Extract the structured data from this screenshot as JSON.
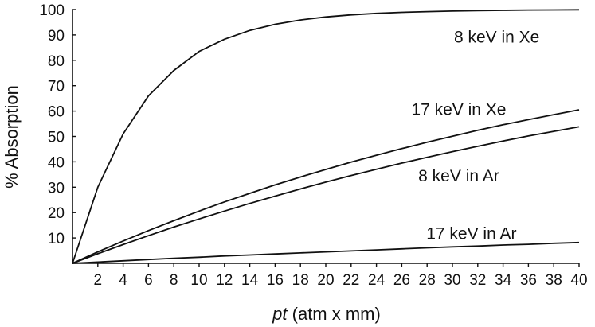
{
  "chart_data": {
    "type": "line",
    "title": "",
    "xlabel_italic": "pt",
    "xlabel_rest": " (atm x mm)",
    "ylabel": "% Absorption",
    "xlim": [
      0,
      40
    ],
    "ylim": [
      0,
      100
    ],
    "x_ticks": [
      2,
      4,
      6,
      8,
      10,
      12,
      14,
      16,
      18,
      20,
      22,
      24,
      26,
      28,
      30,
      32,
      34,
      36,
      38,
      40
    ],
    "y_ticks": [
      10,
      20,
      30,
      40,
      50,
      60,
      70,
      80,
      90,
      100
    ],
    "grid": false,
    "series": [
      {
        "name": "8 keV in Xe",
        "x": [
          0,
          2,
          4,
          6,
          8,
          10,
          12,
          14,
          16,
          18,
          20,
          22,
          24,
          26,
          28,
          30,
          32,
          34,
          36,
          38,
          40
        ],
        "y": [
          0,
          30,
          51,
          66,
          76,
          83.5,
          88.3,
          91.8,
          94.2,
          95.9,
          97.1,
          97.9,
          98.5,
          98.9,
          99.2,
          99.4,
          99.6,
          99.7,
          99.8,
          99.85,
          99.9
        ]
      },
      {
        "name": "17 keV in Xe",
        "x": [
          0,
          2,
          4,
          6,
          8,
          10,
          12,
          14,
          16,
          18,
          20,
          22,
          24,
          26,
          28,
          30,
          32,
          34,
          36,
          38,
          40
        ],
        "y": [
          0,
          4.5,
          8.8,
          12.9,
          16.8,
          20.6,
          24.2,
          27.6,
          30.9,
          34.0,
          37.0,
          39.9,
          42.6,
          45.2,
          47.7,
          50.1,
          52.4,
          54.6,
          56.6,
          58.6,
          60.5
        ]
      },
      {
        "name": "8 keV in Ar",
        "x": [
          0,
          2,
          4,
          6,
          8,
          10,
          12,
          14,
          16,
          18,
          20,
          22,
          24,
          26,
          28,
          30,
          32,
          34,
          36,
          38,
          40
        ],
        "y": [
          0,
          3.8,
          7.4,
          10.9,
          14.3,
          17.5,
          20.6,
          23.6,
          26.5,
          29.3,
          32.0,
          34.6,
          37.1,
          39.5,
          41.8,
          44.0,
          46.1,
          48.2,
          50.2,
          52.0,
          53.8
        ]
      },
      {
        "name": "17 keV in Ar",
        "x": [
          0,
          2,
          4,
          6,
          8,
          10,
          12,
          14,
          16,
          18,
          20,
          22,
          24,
          26,
          28,
          30,
          32,
          34,
          36,
          38,
          40
        ],
        "y": [
          0,
          0.5,
          1.0,
          1.5,
          2.0,
          2.4,
          2.9,
          3.3,
          3.7,
          4.1,
          4.5,
          4.9,
          5.3,
          5.7,
          6.1,
          6.5,
          6.8,
          7.2,
          7.5,
          7.9,
          8.2
        ]
      }
    ],
    "series_label_positions_data": [
      {
        "x": 33.5,
        "y": 87
      },
      {
        "x": 30.5,
        "y": 58.5
      },
      {
        "x": 30.5,
        "y": 32.3
      },
      {
        "x": 31.5,
        "y": 9.5
      }
    ]
  }
}
